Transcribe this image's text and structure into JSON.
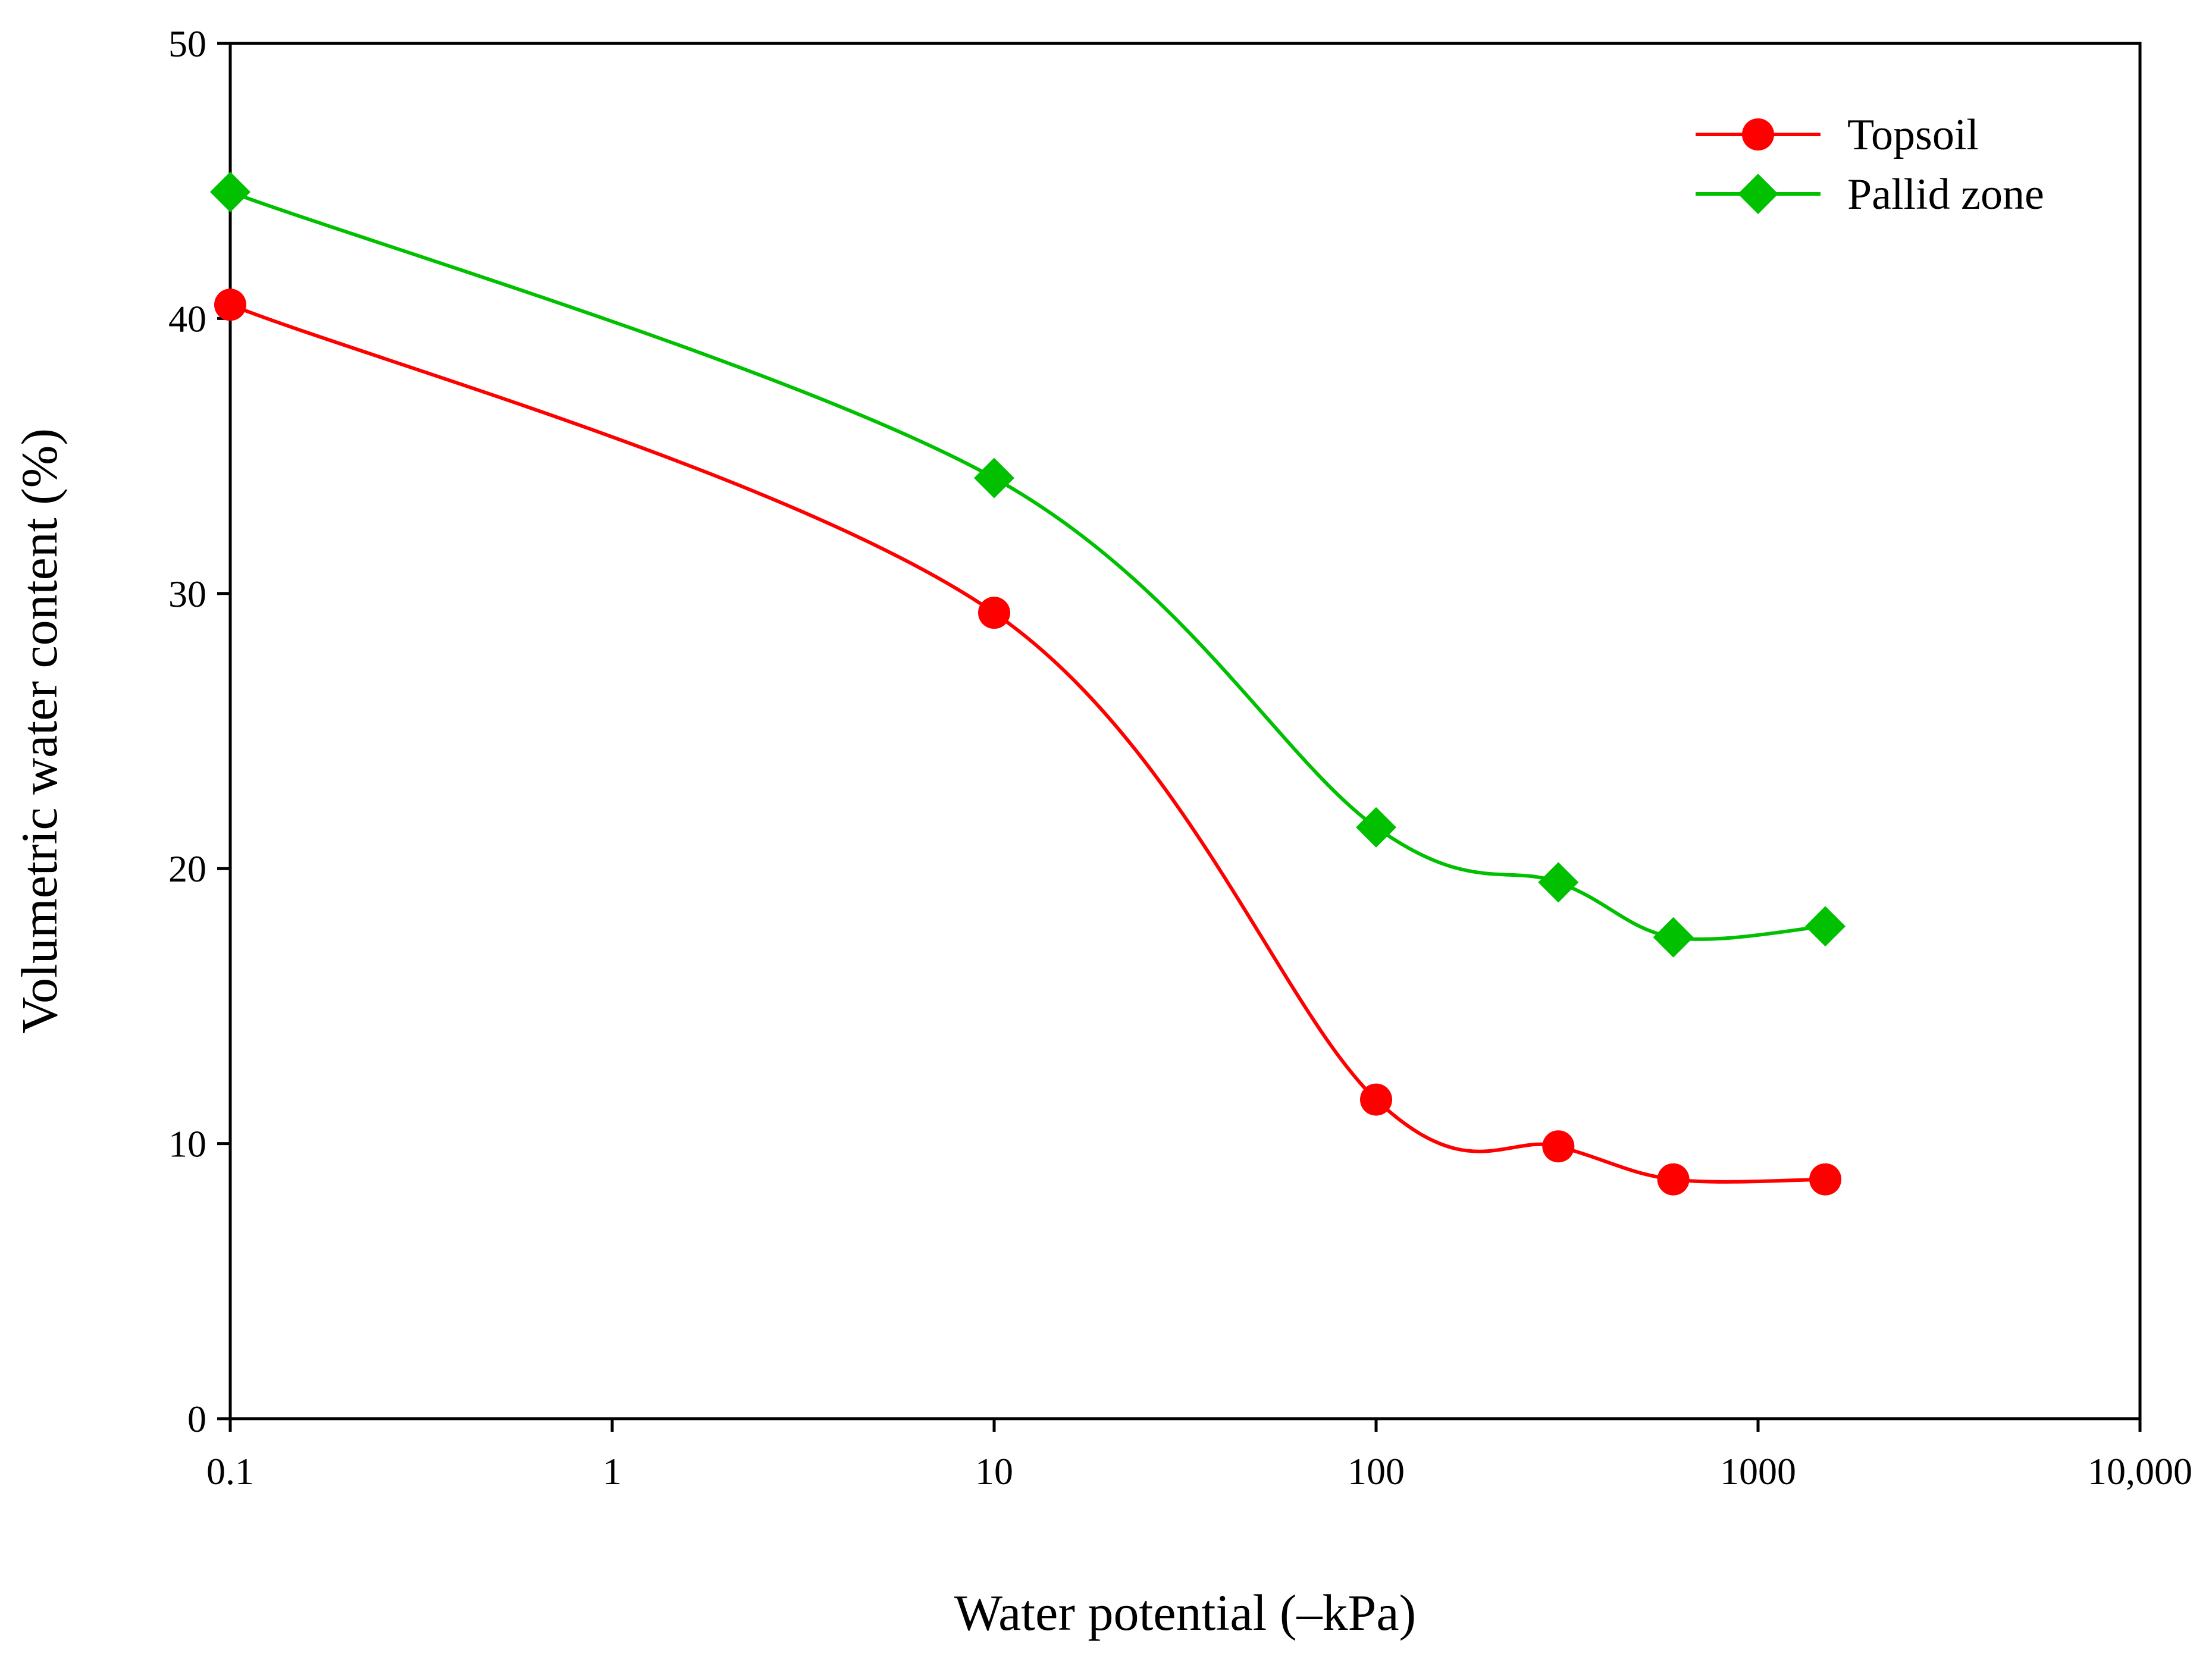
{
  "chart_data": {
    "type": "line",
    "title": "",
    "xlabel": "Water potential (–kPa)",
    "ylabel": "Volumetric water content (%)",
    "xscale": "log",
    "xlim": [
      0.1,
      10000
    ],
    "ylim": [
      0,
      50
    ],
    "grid": false,
    "legend_position": "top-right",
    "x_ticks": [
      0.1,
      1,
      10,
      100,
      1000,
      10000
    ],
    "x_tick_labels": [
      "0.1",
      "1",
      "10",
      "100",
      "1000",
      "10,000"
    ],
    "y_ticks": [
      0,
      10,
      20,
      30,
      40,
      50
    ],
    "y_tick_labels": [
      "0",
      "10",
      "20",
      "30",
      "40",
      "50"
    ],
    "series": [
      {
        "name": "Topsoil",
        "color": "#ff0000",
        "marker": "circle",
        "x": [
          0.1,
          10,
          100,
          300,
          600,
          1500
        ],
        "y": [
          40.5,
          29.3,
          11.6,
          9.9,
          8.7,
          8.7
        ]
      },
      {
        "name": "Pallid zone",
        "color": "#00c000",
        "marker": "diamond",
        "x": [
          0.1,
          10,
          100,
          300,
          600,
          1500
        ],
        "y": [
          44.6,
          34.2,
          21.5,
          19.5,
          17.5,
          17.9
        ]
      }
    ]
  }
}
